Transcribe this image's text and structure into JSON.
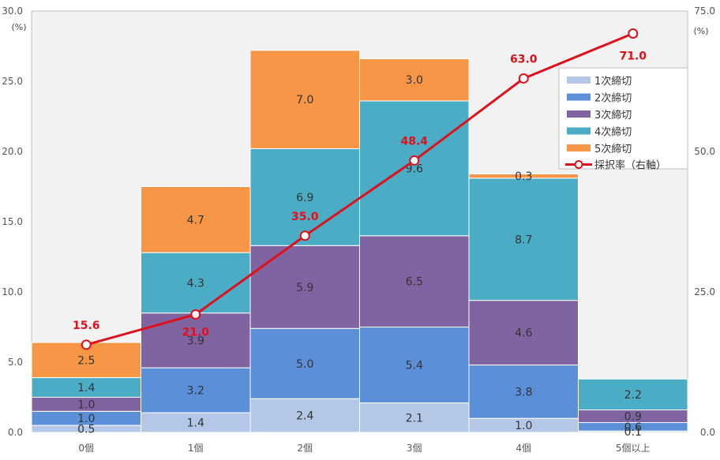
{
  "chart_data": {
    "type": "bar",
    "stacked": true,
    "categories": [
      "0個",
      "1個",
      "2個",
      "3個",
      "4個",
      "5個以上"
    ],
    "series": [
      {
        "name": "1次締切",
        "color": "#b4c7e7",
        "values": [
          0.5,
          1.4,
          2.4,
          2.1,
          1.0,
          0.1
        ]
      },
      {
        "name": "2次締切",
        "color": "#5b8fd8",
        "values": [
          1.0,
          3.2,
          5.0,
          5.4,
          3.8,
          0.6
        ]
      },
      {
        "name": "3次締切",
        "color": "#8064a2",
        "values": [
          1.0,
          3.9,
          5.9,
          6.5,
          4.6,
          0.9
        ]
      },
      {
        "name": "4次締切",
        "color": "#4bacc6",
        "values": [
          1.4,
          4.3,
          6.9,
          9.6,
          8.7,
          2.2
        ]
      },
      {
        "name": "5次締切",
        "color": "#f79646",
        "values": [
          2.5,
          4.7,
          7.0,
          3.0,
          0.3,
          null
        ]
      }
    ],
    "line": {
      "name": "採択率（右軸）",
      "color": "#e0101b",
      "values": [
        15.6,
        21.0,
        35.0,
        48.4,
        63.0,
        71.0
      ],
      "labels": [
        "15.6",
        "21.0",
        "35.0",
        "48.4",
        "63.0",
        "71.0"
      ]
    },
    "segment_labels": [
      [
        "0.5",
        "1.0",
        "1.0",
        "1.4",
        "2.5"
      ],
      [
        "1.4",
        "3.2",
        "3.9",
        "4.3",
        "4.7"
      ],
      [
        "2.4",
        "5.0",
        "5.9",
        "6.9",
        "7.0"
      ],
      [
        "2.1",
        "5.4",
        "6.5",
        "9.6",
        "3.0"
      ],
      [
        "1.0",
        "3.8",
        "4.6",
        "8.7",
        "0.3"
      ],
      [
        "0.1",
        "0.6",
        "0.9",
        "2.2",
        ""
      ]
    ],
    "y_left": {
      "min": 0,
      "max": 30,
      "ticks": [
        "0.0",
        "5.0",
        "10.0",
        "15.0",
        "20.0",
        "25.0",
        "30.0"
      ],
      "unit": "(%)"
    },
    "y_right": {
      "min": 0,
      "max": 75,
      "ticks": [
        "0.0",
        "25.0",
        "50.0",
        "75.0"
      ],
      "unit": "(%)"
    },
    "legend_position": "top-right",
    "grid": false,
    "title": ""
  }
}
